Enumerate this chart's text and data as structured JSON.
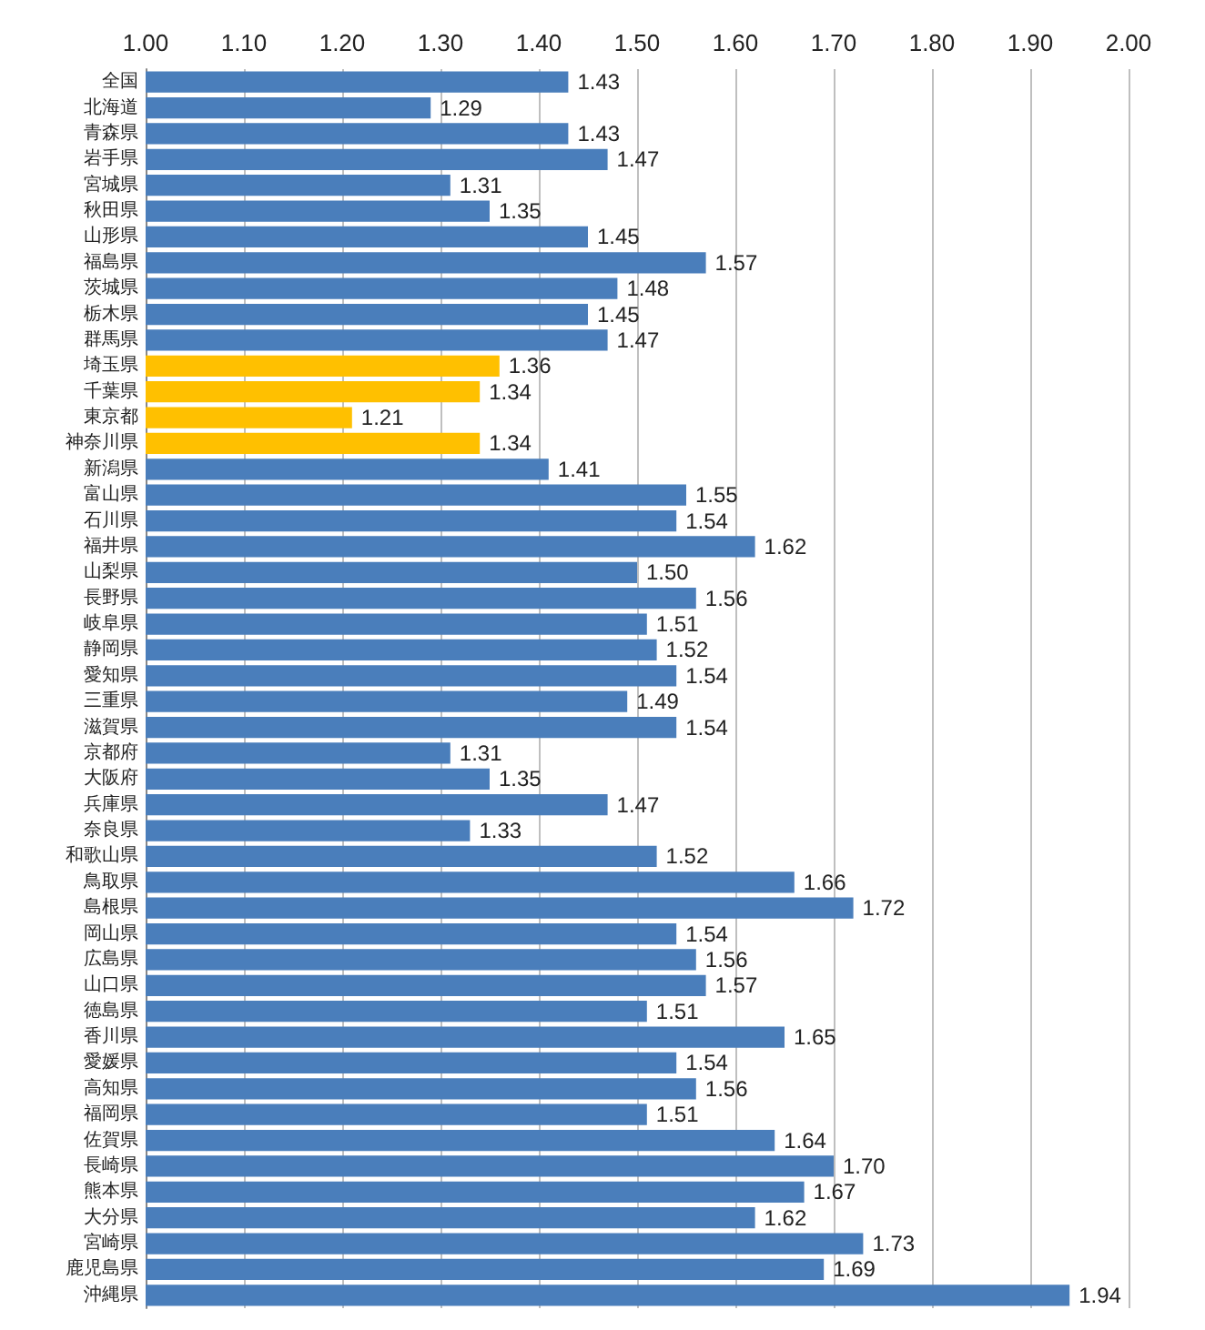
{
  "chart_data": {
    "type": "bar",
    "orientation": "horizontal",
    "categories": [
      "全国",
      "北海道",
      "青森県",
      "岩手県",
      "宮城県",
      "秋田県",
      "山形県",
      "福島県",
      "茨城県",
      "栃木県",
      "群馬県",
      "埼玉県",
      "千葉県",
      "東京都",
      "神奈川県",
      "新潟県",
      "富山県",
      "石川県",
      "福井県",
      "山梨県",
      "長野県",
      "岐阜県",
      "静岡県",
      "愛知県",
      "三重県",
      "滋賀県",
      "京都府",
      "大阪府",
      "兵庫県",
      "奈良県",
      "和歌山県",
      "鳥取県",
      "島根県",
      "岡山県",
      "広島県",
      "山口県",
      "徳島県",
      "香川県",
      "愛媛県",
      "高知県",
      "福岡県",
      "佐賀県",
      "長崎県",
      "熊本県",
      "大分県",
      "宮崎県",
      "鹿児島県",
      "沖縄県"
    ],
    "values": [
      1.43,
      1.29,
      1.43,
      1.47,
      1.31,
      1.35,
      1.45,
      1.57,
      1.48,
      1.45,
      1.47,
      1.36,
      1.34,
      1.21,
      1.34,
      1.41,
      1.55,
      1.54,
      1.62,
      1.5,
      1.56,
      1.51,
      1.52,
      1.54,
      1.49,
      1.54,
      1.31,
      1.35,
      1.47,
      1.33,
      1.52,
      1.66,
      1.72,
      1.54,
      1.56,
      1.57,
      1.51,
      1.65,
      1.54,
      1.56,
      1.51,
      1.64,
      1.7,
      1.67,
      1.62,
      1.73,
      1.69,
      1.94
    ],
    "value_labels": [
      "1.43",
      "1.29",
      "1.43",
      "1.47",
      "1.31",
      "1.35",
      "1.45",
      "1.57",
      "1.48",
      "1.45",
      "1.47",
      "1.36",
      "1.34",
      "1.21",
      "1.34",
      "1.41",
      "1.55",
      "1.54",
      "1.62",
      "1.50",
      "1.56",
      "1.51",
      "1.52",
      "1.54",
      "1.49",
      "1.54",
      "1.31",
      "1.35",
      "1.47",
      "1.33",
      "1.52",
      "1.66",
      "1.72",
      "1.54",
      "1.56",
      "1.57",
      "1.51",
      "1.65",
      "1.54",
      "1.56",
      "1.51",
      "1.64",
      "1.70",
      "1.67",
      "1.62",
      "1.73",
      "1.69",
      "1.94"
    ],
    "colors": [
      "#4a7ebb",
      "#4a7ebb",
      "#4a7ebb",
      "#4a7ebb",
      "#4a7ebb",
      "#4a7ebb",
      "#4a7ebb",
      "#4a7ebb",
      "#4a7ebb",
      "#4a7ebb",
      "#4a7ebb",
      "#ffc000",
      "#ffc000",
      "#ffc000",
      "#ffc000",
      "#4a7ebb",
      "#4a7ebb",
      "#4a7ebb",
      "#4a7ebb",
      "#4a7ebb",
      "#4a7ebb",
      "#4a7ebb",
      "#4a7ebb",
      "#4a7ebb",
      "#4a7ebb",
      "#4a7ebb",
      "#4a7ebb",
      "#4a7ebb",
      "#4a7ebb",
      "#4a7ebb",
      "#4a7ebb",
      "#4a7ebb",
      "#4a7ebb",
      "#4a7ebb",
      "#4a7ebb",
      "#4a7ebb",
      "#4a7ebb",
      "#4a7ebb",
      "#4a7ebb",
      "#4a7ebb",
      "#4a7ebb",
      "#4a7ebb",
      "#4a7ebb",
      "#4a7ebb",
      "#4a7ebb",
      "#4a7ebb",
      "#4a7ebb",
      "#4a7ebb"
    ],
    "xlim": [
      1,
      2
    ],
    "xticks": [
      {
        "value": 1,
        "label": "1.00"
      },
      {
        "value": 1.1,
        "label": "1.10"
      },
      {
        "value": 1.2,
        "label": "1.20"
      },
      {
        "value": 1.3,
        "label": "1.30"
      },
      {
        "value": 1.4,
        "label": "1.40"
      },
      {
        "value": 1.5,
        "label": "1.50"
      },
      {
        "value": 1.6,
        "label": "1.60"
      },
      {
        "value": 1.7,
        "label": "1.70"
      },
      {
        "value": 1.8,
        "label": "1.80"
      },
      {
        "value": 1.9,
        "label": "1.90"
      },
      {
        "value": 2,
        "label": "2.00"
      }
    ],
    "grid": "x"
  }
}
